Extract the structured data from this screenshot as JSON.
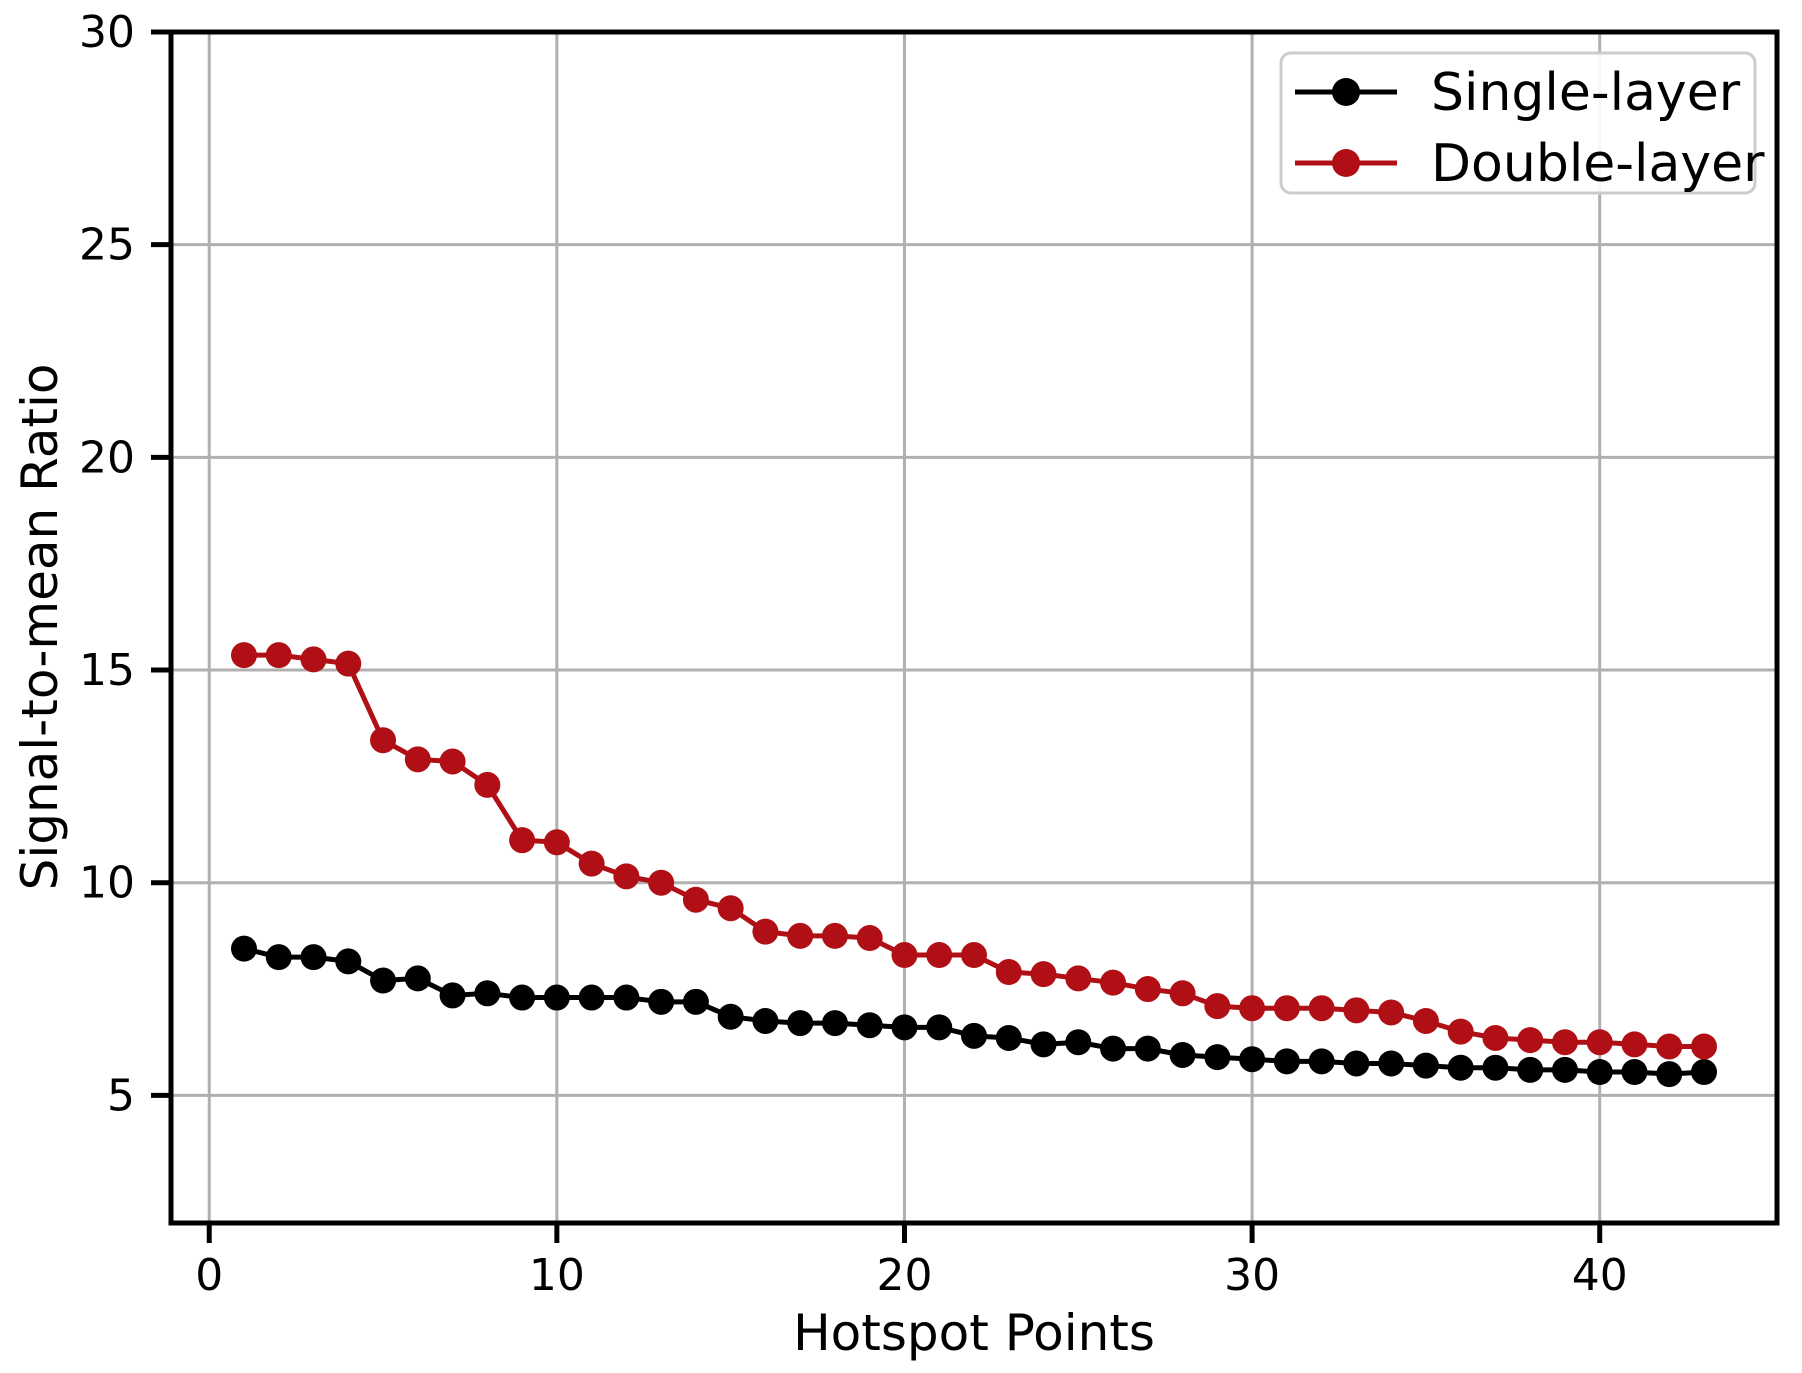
{
  "figure": {
    "background": "#ffffff",
    "title": ""
  },
  "style": {
    "single_color": "#000000",
    "double_color": "#b01015",
    "grid_color": "#b0b0b0",
    "spine_color": "#000000",
    "legend_border_color": "#cccccc",
    "legend_bg_color": "#ffffff",
    "text_color": "#000000"
  },
  "chart_data": {
    "type": "line",
    "title": "",
    "xlabel": "Hotspot Points",
    "ylabel": "Signal-to-mean Ratio",
    "xlim": [
      -1.1,
      45.1
    ],
    "ylim": [
      2,
      30
    ],
    "xticks": [
      0,
      10,
      20,
      30,
      40
    ],
    "yticks": [
      5,
      10,
      15,
      20,
      25,
      30
    ],
    "grid": true,
    "legend_position": "upper right",
    "x": [
      1,
      2,
      3,
      4,
      5,
      6,
      7,
      8,
      9,
      10,
      11,
      12,
      13,
      14,
      15,
      16,
      17,
      18,
      19,
      20,
      21,
      22,
      23,
      24,
      25,
      26,
      27,
      28,
      29,
      30,
      31,
      32,
      33,
      34,
      35,
      36,
      37,
      38,
      39,
      40,
      41,
      42,
      43
    ],
    "series": [
      {
        "name": "Single-layer",
        "color": "#000000",
        "marker": "circle",
        "linestyle": "solid",
        "values": [
          8.45,
          8.25,
          8.25,
          8.15,
          7.7,
          7.75,
          7.35,
          7.4,
          7.3,
          7.3,
          7.3,
          7.3,
          7.2,
          7.2,
          6.85,
          6.75,
          6.7,
          6.7,
          6.65,
          6.6,
          6.6,
          6.4,
          6.35,
          6.2,
          6.25,
          6.1,
          6.1,
          5.95,
          5.9,
          5.85,
          5.8,
          5.8,
          5.75,
          5.75,
          5.7,
          5.65,
          5.65,
          5.6,
          5.6,
          5.55,
          5.55,
          5.5,
          5.55
        ]
      },
      {
        "name": "Double-layer",
        "color": "#b01015",
        "marker": "circle",
        "linestyle": "solid",
        "values": [
          15.35,
          15.35,
          15.25,
          15.15,
          13.35,
          12.9,
          12.85,
          12.3,
          11.0,
          10.95,
          10.45,
          10.15,
          10.0,
          9.6,
          9.4,
          8.85,
          8.75,
          8.75,
          8.7,
          8.3,
          8.3,
          8.3,
          7.9,
          7.85,
          7.75,
          7.65,
          7.5,
          7.4,
          7.1,
          7.05,
          7.05,
          7.05,
          7.0,
          6.95,
          6.75,
          6.5,
          6.35,
          6.3,
          6.25,
          6.25,
          6.2,
          6.15,
          6.15
        ]
      }
    ]
  }
}
